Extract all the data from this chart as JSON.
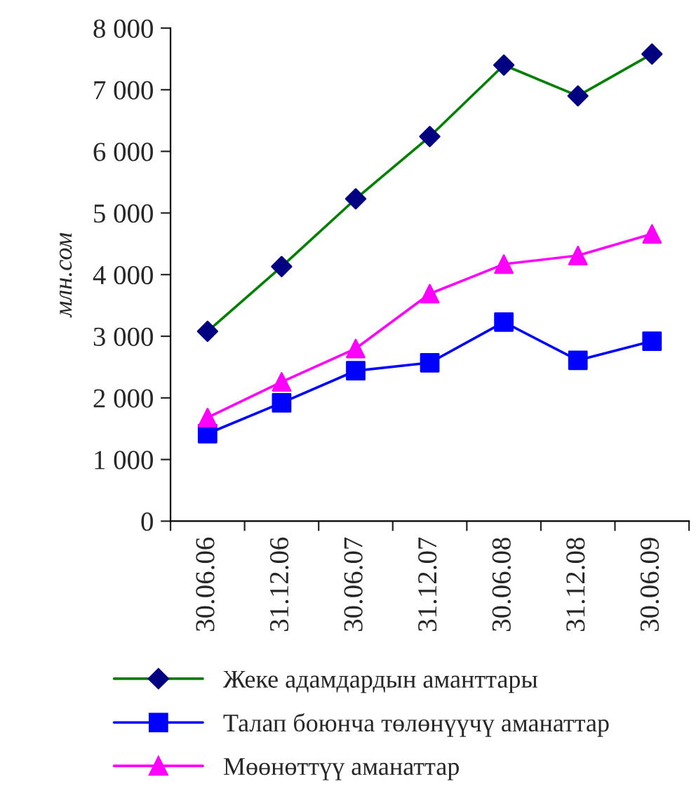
{
  "chart_data": {
    "type": "line",
    "ylabel": "млн.сом",
    "categories": [
      "30.06.06",
      "31.12.06",
      "30.06.07",
      "31.12.07",
      "30.06.08",
      "31.12.08",
      "30.06.09"
    ],
    "series": [
      {
        "name": "Жеке адамдардын аманттары",
        "color": "#008000",
        "colors": [
          "#000080",
          "#000080",
          "#000080",
          "#000080",
          "#000080",
          "#000080",
          "#000080"
        ],
        "marker": "diamond",
        "values": [
          3080,
          4130,
          5230,
          6240,
          7400,
          6900,
          7580
        ]
      },
      {
        "name": "Талап боюнча төлөнүүчү аманаттар",
        "color": "#0000ff",
        "marker": "square",
        "values": [
          1420,
          1920,
          2440,
          2570,
          3230,
          2610,
          2920
        ]
      },
      {
        "name": "Мөөнөттүү аманаттар",
        "color": "#ff00ff",
        "marker": "triangle",
        "values": [
          1680,
          2260,
          2800,
          3690,
          4170,
          4310,
          4660
        ]
      }
    ],
    "ylim": [
      0,
      8000
    ],
    "yticks": [
      {
        "value": 0,
        "label": "0"
      },
      {
        "value": 1000,
        "label": "1 000"
      },
      {
        "value": 2000,
        "label": "2 000"
      },
      {
        "value": 3000,
        "label": "3 000"
      },
      {
        "value": 4000,
        "label": "4 000"
      },
      {
        "value": 5000,
        "label": "5 000"
      },
      {
        "value": 6000,
        "label": "6 000"
      },
      {
        "value": 7000,
        "label": "7 000"
      },
      {
        "value": 8000,
        "label": "8 000"
      }
    ],
    "grid": false,
    "legend": "bottom",
    "line_style": "solid"
  }
}
